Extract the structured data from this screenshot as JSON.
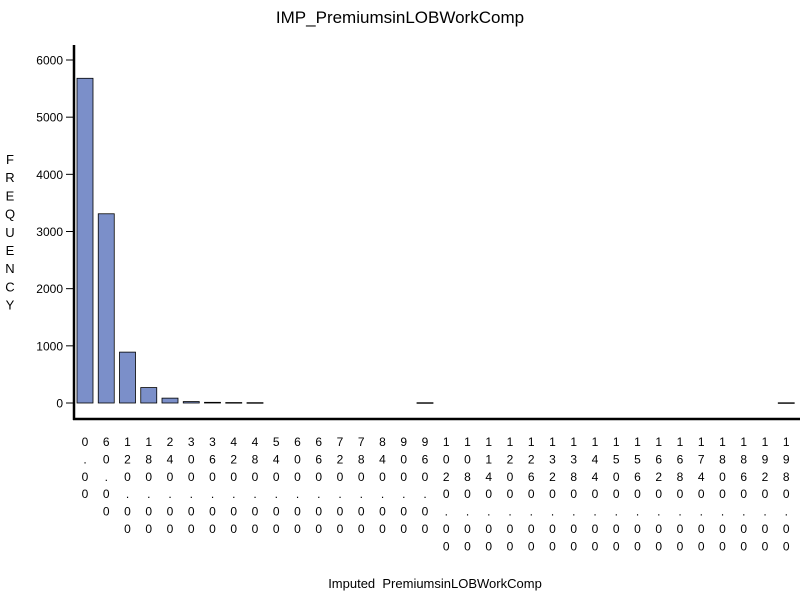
{
  "chart_data": {
    "type": "bar",
    "title": "IMP_PremiumsinLOBWorkComp",
    "xlabel": "Imputed  PremiumsinLOBWorkComp",
    "ylabel": "FREQUENCY",
    "ylim": [
      0,
      6200
    ],
    "yticks": [
      0,
      1000,
      2000,
      3000,
      4000,
      5000,
      6000
    ],
    "grid": false,
    "categories": [
      "0.00",
      "60.00",
      "120.00",
      "180.00",
      "240.00",
      "300.00",
      "360.00",
      "420.00",
      "480.00",
      "540.00",
      "600.00",
      "660.00",
      "720.00",
      "780.00",
      "840.00",
      "900.00",
      "960.00",
      "1020.00",
      "1080.00",
      "1140.00",
      "1200.00",
      "1260.00",
      "1320.00",
      "1380.00",
      "1440.00",
      "1500.00",
      "1560.00",
      "1620.00",
      "1680.00",
      "1740.00",
      "1800.00",
      "1860.00",
      "1920.00",
      "1980.00"
    ],
    "values": [
      5680,
      3310,
      890,
      270,
      85,
      25,
      12,
      8,
      6,
      0,
      0,
      0,
      0,
      0,
      0,
      0,
      5,
      0,
      0,
      0,
      0,
      0,
      0,
      0,
      0,
      0,
      0,
      0,
      0,
      0,
      0,
      0,
      0,
      4
    ],
    "bar_color": "#7b8fc9"
  }
}
